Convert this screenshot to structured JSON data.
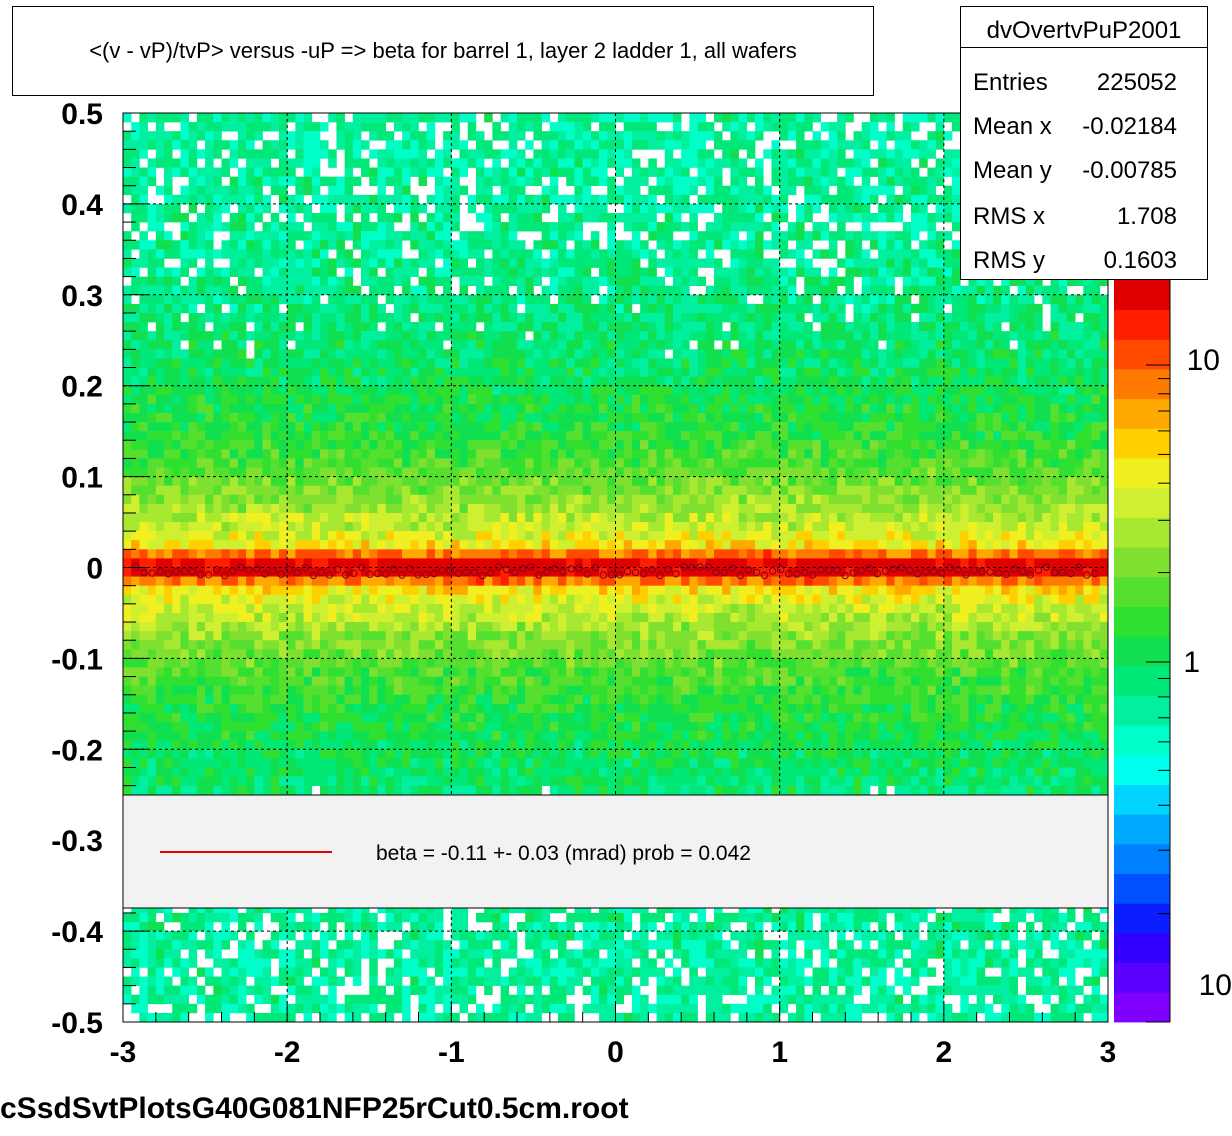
{
  "footer_text": "cSsdSvtPlotsG40G081NFP25rCut0.5cm.root",
  "colors": {
    "fit_line": "#e00000",
    "legend_bg": "#f2f2f2",
    "palette": [
      "#7f00ff",
      "#5a00ff",
      "#3300ff",
      "#0a1eff",
      "#0050ff",
      "#0080ff",
      "#00aaff",
      "#00d4ff",
      "#00ffee",
      "#00ffc8",
      "#00f0a0",
      "#00e878",
      "#10e050",
      "#30e030",
      "#55e030",
      "#80e030",
      "#a8e830",
      "#cff030",
      "#f0f020",
      "#ffd000",
      "#ffa800",
      "#ff7a00",
      "#ff4a00",
      "#ff1e00",
      "#e00000"
    ]
  },
  "chart_data": {
    "type": "heatmap",
    "title": "<(v - vP)/tvP> versus  -uP => beta for barrel 1, layer 2 ladder 1, all wafers",
    "xlabel": "",
    "ylabel": "",
    "xlim": [
      -3,
      3
    ],
    "ylim": [
      -0.5,
      0.5
    ],
    "x_ticks": [
      -3,
      -2,
      -1,
      0,
      1,
      2,
      3
    ],
    "y_ticks": [
      0.5,
      0.4,
      0.3,
      0.2,
      0.1,
      0,
      -0.1,
      -0.2,
      -0.3,
      -0.4,
      -0.5
    ],
    "grid": true,
    "z_scale": "log",
    "z_tick_labels": [
      "10",
      "1",
      "10"
    ],
    "band_center": 0.0,
    "band_sigma": 0.16,
    "profile_mean": -0.004,
    "stats": {
      "name": "dvOvertvPuP2001",
      "rows": [
        {
          "label": "Entries",
          "value": "225052"
        },
        {
          "label": "Mean x",
          "value": "-0.02184"
        },
        {
          "label": "Mean y",
          "value": "-0.00785"
        },
        {
          "label": "RMS x",
          "value": "1.708"
        },
        {
          "label": "RMS y",
          "value": "0.1603"
        }
      ]
    },
    "legend": {
      "entry": "beta =   -0.11 +-  0.03 (mrad) prob = 0.042",
      "placement": "bottom"
    }
  }
}
